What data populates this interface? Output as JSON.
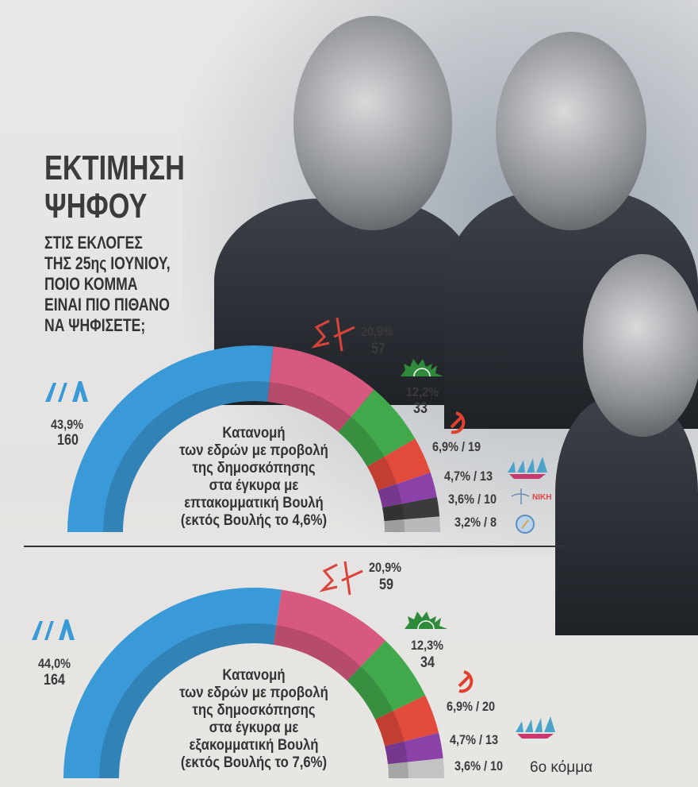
{
  "header": {
    "title_line1": "ΕΚΤΙΜΗΣΗ",
    "title_line2": "ΨΗΦΟΥ",
    "question": [
      "ΣΤΙΣ ΕΚΛΟΓΕΣ",
      "ΤΗΣ 25ης ΙΟΥΝΙΟΥ,",
      "ΠΟΙΟ ΚΟΜΜΑ",
      "ΕΙΝΑΙ ΠΙΟ ΠΙΘΑΝΟ",
      "ΝΑ ΨΗΦΙΣΕΤΕ;"
    ]
  },
  "colors": {
    "nd": "#3a9ad8",
    "syriza": "#d8597f",
    "pasok": "#42a84c",
    "kke": "#e24b3b",
    "spartiates": "#8b42a8",
    "niki": "#3b3b3d",
    "plefsi": "#b9b9bb",
    "sixth": "#c4c3c4"
  },
  "chart_data": [
    {
      "type": "pie",
      "shape": "half-donut parliament seats",
      "caption": [
        "Κατανομή",
        "των εδρών με προβολή",
        "της δημοσκόπησης",
        "στα έγκυρα με",
        "επτακομματική Βουλή",
        "(εκτός Βουλής το 4,6%)"
      ],
      "series": [
        {
          "party_logo": "nd-logo",
          "percent": "43,9%",
          "seats": 160,
          "color": "#3a9ad8"
        },
        {
          "party_logo": "syriza-logo",
          "percent": "20,9%",
          "seats": 57,
          "color": "#d8597f"
        },
        {
          "party_logo": "pasok-logo",
          "percent": "12,2%",
          "seats": 33,
          "color": "#42a84c"
        },
        {
          "party_logo": "kke-logo",
          "percent": "6,9%",
          "seats": 19,
          "color": "#e24b3b"
        },
        {
          "party_logo": "spartiates-logo",
          "percent": "4,7%",
          "seats": 13,
          "color": "#8b42a8"
        },
        {
          "party_logo": "niki-logo",
          "logo_text": "ΝΙΚΗ",
          "percent": "3,6%",
          "seats": 10,
          "color": "#3b3b3d"
        },
        {
          "party_logo": "plefsi-logo",
          "percent": "3,2%",
          "seats": 8,
          "color": "#b9b9bb"
        }
      ]
    },
    {
      "type": "pie",
      "shape": "half-donut parliament seats",
      "caption": [
        "Κατανομή",
        "των εδρών με προβολή",
        "της δημοσκόπησης",
        "στα έγκυρα με",
        "εξακομματική Βουλή",
        "(εκτός Βουλής το 7,6%)"
      ],
      "series": [
        {
          "party_logo": "nd-logo",
          "percent": "44,0%",
          "seats": 164,
          "color": "#3a9ad8"
        },
        {
          "party_logo": "syriza-logo",
          "percent": "20,9%",
          "seats": 59,
          "color": "#d8597f"
        },
        {
          "party_logo": "pasok-logo",
          "percent": "12,3%",
          "seats": 34,
          "color": "#42a84c"
        },
        {
          "party_logo": "kke-logo",
          "percent": "6,9%",
          "seats": 20,
          "color": "#e24b3b"
        },
        {
          "party_logo": "spartiates-logo",
          "percent": "4,7%",
          "seats": 13,
          "color": "#8b42a8"
        },
        {
          "party_logo": "none",
          "label": "6ο κόμμα",
          "percent": "3,6%",
          "seats": 10,
          "color": "#c4c3c4"
        }
      ]
    }
  ]
}
